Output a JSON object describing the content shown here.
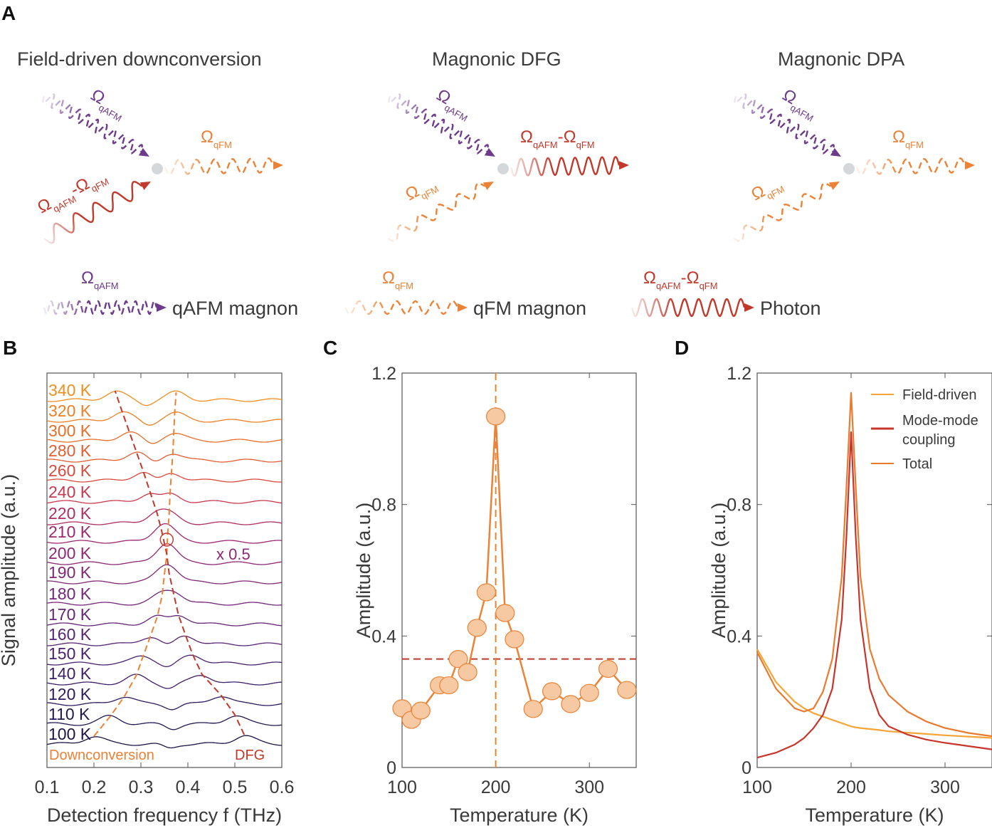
{
  "panel_labels": [
    "A",
    "B",
    "C",
    "D"
  ],
  "panelA": {
    "omega": "Ω",
    "diagrams": [
      {
        "title": "Field-driven downconversion"
      },
      {
        "title": "Magnonic DFG"
      },
      {
        "title": "Magnonic DPA"
      }
    ],
    "subscripts": {
      "qafm": "qAFM",
      "qfm": "qFM"
    },
    "minus": "-",
    "legend": [
      {
        "label": "qAFM magnon",
        "color": "#6d3a8c"
      },
      {
        "label": "qFM magnon",
        "color": "#ec8236"
      },
      {
        "label": "Photon",
        "color": "#c0392b"
      }
    ],
    "colors": {
      "qafm": "#6d3a8c",
      "qfm": "#ec8236",
      "photon": "#c0392b",
      "vertex": "#d5d8da"
    }
  },
  "chart_data": [
    {
      "panel": "B",
      "type": "line",
      "xlabel": "Detection frequency f (THz)",
      "ylabel": "Signal amplitude (a.u.)",
      "xlim": [
        0.1,
        0.6
      ],
      "xticks": [
        "0.1",
        "0.2",
        "0.3",
        "0.4",
        "0.5",
        "0.6"
      ],
      "temperatures": [
        100,
        110,
        120,
        140,
        150,
        160,
        170,
        180,
        190,
        200,
        210,
        220,
        240,
        260,
        280,
        300,
        320,
        340
      ],
      "trace_labels": [
        "100 K",
        "110 K",
        "120 K",
        "140 K",
        "150 K",
        "160 K",
        "170 K",
        "180 K",
        "190 K",
        "200 K",
        "210 K",
        "220 K",
        "240 K",
        "260 K",
        "280 K",
        "300 K",
        "320 K",
        "340 K"
      ],
      "trace_colors": [
        "#1c1446",
        "#231852",
        "#2e1b5e",
        "#3d1f68",
        "#4a216f",
        "#572474",
        "#652676",
        "#732777",
        "#812877",
        "#8f2874",
        "#9c2870",
        "#b02d62",
        "#c8394d",
        "#d84a3e",
        "#e25e32",
        "#e86f2a",
        "#ee7f24",
        "#f08f20"
      ],
      "downconversion_peak_THz": [
        0.2,
        0.235,
        0.265,
        0.29,
        0.305,
        0.32,
        0.335,
        0.345,
        0.35,
        0.355,
        0.357,
        0.36,
        0.362,
        0.365,
        0.368,
        0.37,
        0.372,
        0.375
      ],
      "dfg_peak_THz": [
        0.52,
        0.5,
        0.47,
        0.43,
        0.41,
        0.395,
        0.38,
        0.37,
        0.36,
        0.355,
        0.345,
        0.335,
        0.32,
        0.305,
        0.29,
        0.275,
        0.26,
        0.245
      ],
      "annotations": {
        "scale": "x 0.5",
        "downconversion": "Downconversion",
        "dfg": "DFG"
      },
      "colors": {
        "downconversion": "#ec8236",
        "dfg": "#c0392b"
      }
    },
    {
      "panel": "C",
      "type": "scatter",
      "xlabel": "Temperature (K)",
      "ylabel": "Amplitude (a.u.)",
      "xlim": [
        100,
        350
      ],
      "ylim": [
        0,
        1.2
      ],
      "xticks": [
        "100",
        "200",
        "300"
      ],
      "yticks": [
        "0",
        "0.4",
        "0.8",
        "1.2"
      ],
      "x": [
        100,
        110,
        120,
        140,
        150,
        160,
        170,
        180,
        190,
        200,
        210,
        220,
        240,
        260,
        280,
        300,
        320,
        340
      ],
      "y": [
        0.18,
        0.145,
        0.173,
        0.25,
        0.25,
        0.33,
        0.29,
        0.425,
        0.533,
        1.068,
        0.47,
        0.39,
        0.178,
        0.232,
        0.193,
        0.227,
        0.3,
        0.236
      ],
      "hline": 0.33,
      "vline": 200,
      "colors": {
        "marker_fill": "#f7c9a3",
        "line": "#ec8236",
        "hline": "#c0392b"
      }
    },
    {
      "panel": "D",
      "type": "line",
      "xlabel": "Temperature (K)",
      "ylabel": "Amplitude (a.u.)",
      "xlim": [
        100,
        350
      ],
      "ylim": [
        0,
        1.2
      ],
      "xticks": [
        "100",
        "200",
        "300"
      ],
      "yticks": [
        "0",
        "0.4",
        "0.8",
        "1.2"
      ],
      "legend_placement": "top-right",
      "x": [
        100,
        120,
        140,
        150,
        160,
        170,
        180,
        190,
        195,
        200,
        205,
        210,
        220,
        230,
        240,
        260,
        280,
        300,
        325,
        350
      ],
      "series": [
        {
          "name": "Field-driven",
          "color": "#f5a535",
          "values": [
            0.36,
            0.26,
            0.2,
            0.18,
            0.165,
            0.155,
            0.145,
            0.135,
            0.13,
            0.125,
            0.122,
            0.12,
            0.117,
            0.114,
            0.11,
            0.106,
            0.102,
            0.098,
            0.094,
            0.09
          ]
        },
        {
          "name": "Mode-mode coupling",
          "color": "#c8352b",
          "values": [
            0.03,
            0.045,
            0.07,
            0.09,
            0.12,
            0.16,
            0.24,
            0.45,
            0.7,
            1.02,
            0.7,
            0.45,
            0.24,
            0.16,
            0.125,
            0.1,
            0.085,
            0.075,
            0.065,
            0.055
          ]
        },
        {
          "name": "Total",
          "color": "#ea7a2e",
          "values": [
            0.35,
            0.24,
            0.18,
            0.17,
            0.18,
            0.23,
            0.33,
            0.58,
            0.85,
            1.14,
            0.85,
            0.58,
            0.36,
            0.27,
            0.22,
            0.17,
            0.14,
            0.12,
            0.105,
            0.095
          ]
        }
      ],
      "legend_lines": [
        [
          "Field-driven"
        ],
        [
          "Mode-mode",
          "coupling"
        ],
        [
          "Total"
        ]
      ]
    }
  ]
}
